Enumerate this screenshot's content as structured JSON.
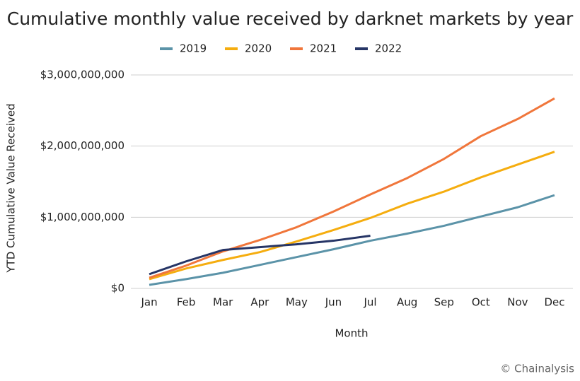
{
  "chart_data": {
    "type": "line",
    "title": "Cumulative monthly value received by darknet markets by year",
    "x_label": "Month",
    "y_label": "YTD Cumulative Value Received",
    "source": "© Chainalysis",
    "categories": [
      "Jan",
      "Feb",
      "Mar",
      "Apr",
      "May",
      "Jun",
      "Jul",
      "Aug",
      "Sep",
      "Oct",
      "Nov",
      "Dec"
    ],
    "series": [
      {
        "name": "2019",
        "color": "#5b93a8",
        "values": [
          50000000,
          130000000,
          220000000,
          330000000,
          440000000,
          550000000,
          670000000,
          770000000,
          880000000,
          1010000000,
          1140000000,
          1310000000
        ]
      },
      {
        "name": "2020",
        "color": "#f5ad0f",
        "values": [
          130000000,
          280000000,
          400000000,
          510000000,
          660000000,
          820000000,
          990000000,
          1190000000,
          1360000000,
          1560000000,
          1740000000,
          1920000000
        ]
      },
      {
        "name": "2021",
        "color": "#f0763b",
        "values": [
          150000000,
          320000000,
          520000000,
          680000000,
          860000000,
          1080000000,
          1320000000,
          1550000000,
          1820000000,
          2140000000,
          2380000000,
          2670000000
        ]
      },
      {
        "name": "2022",
        "color": "#263566",
        "values": [
          200000000,
          380000000,
          540000000,
          580000000,
          620000000,
          670000000,
          740000000,
          null,
          null,
          null,
          null,
          null
        ]
      }
    ],
    "ylim": [
      0,
      3000000000
    ],
    "yticks": [
      {
        "value": 0,
        "label": "$0"
      },
      {
        "value": 1000000000,
        "label": "$1,000,000,000"
      },
      {
        "value": 2000000000,
        "label": "$2,000,000,000"
      },
      {
        "value": 3000000000,
        "label": "$3,000,000,000"
      }
    ],
    "grid": true,
    "legend": "top"
  }
}
